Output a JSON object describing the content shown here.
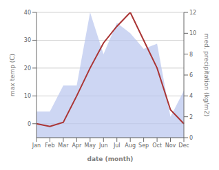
{
  "chart_data": {
    "type": "line",
    "categories": [
      "Jan",
      "Feb",
      "Mar",
      "Apr",
      "May",
      "Jun",
      "Jul",
      "Aug",
      "Sep",
      "Oct",
      "Nov",
      "Dec"
    ],
    "series": [
      {
        "type": "area",
        "axis": "y2",
        "color": "#b8c4ee",
        "values": [
          2.5,
          2.5,
          5.0,
          5.0,
          12.0,
          8.0,
          11.0,
          10.0,
          8.5,
          9.0,
          2.0,
          4.5
        ]
      },
      {
        "type": "line",
        "color": "#aa3535",
        "values": [
          0.0,
          -1.0,
          0.5,
          10.0,
          20.0,
          29.0,
          35.0,
          40.0,
          30.0,
          20.0,
          5.0,
          0.0
        ]
      }
    ],
    "xlabel": "date (month)",
    "ylabel": "max temp (C)",
    "y2label": "med. precipitation (kg/m2)",
    "ylim": [
      -5,
      40
    ],
    "yticks": [
      0,
      10,
      20,
      30,
      40
    ],
    "y2lim": [
      0,
      12
    ],
    "y2ticks": [
      0,
      2,
      4,
      6,
      8,
      10,
      12
    ],
    "grid": true
  }
}
